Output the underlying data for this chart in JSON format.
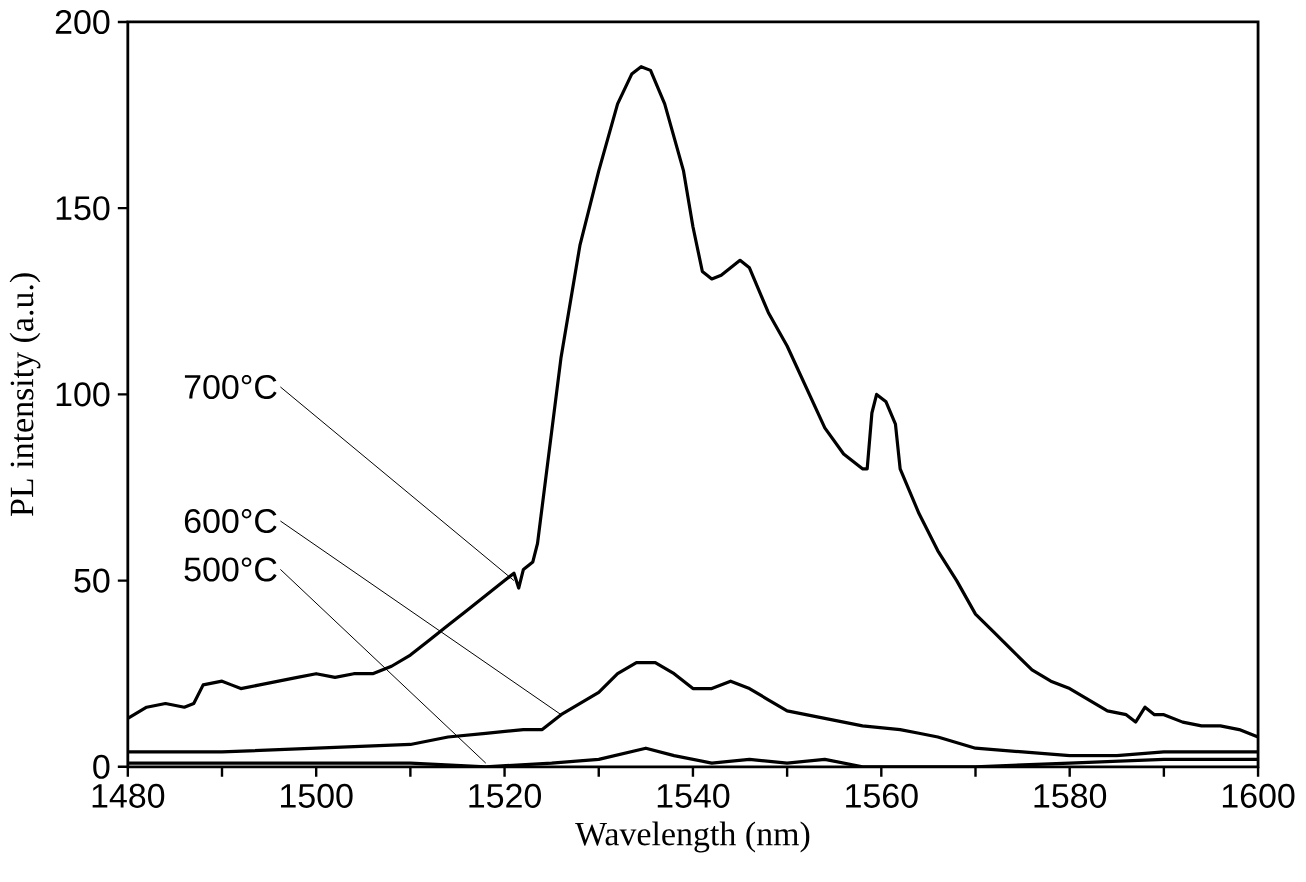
{
  "chart_data": {
    "type": "line",
    "xlabel": "Wavelength (nm)",
    "ylabel": "PL intensity (a.u.)",
    "xlim": [
      1480,
      1600
    ],
    "ylim": [
      0,
      200
    ],
    "xticks": [
      1480,
      {
        "value": 1490,
        "label": null
      },
      1500,
      {
        "value": 1510,
        "label": null
      },
      1520,
      {
        "value": 1530,
        "label": null
      },
      1540,
      {
        "value": 1550,
        "label": null
      },
      1560,
      {
        "value": 1570,
        "label": null
      },
      1580,
      {
        "value": 1590,
        "label": null
      },
      1600
    ],
    "yticks": [
      0,
      50,
      100,
      150,
      200
    ],
    "marker": "none",
    "line_style": "solid",
    "series": [
      {
        "color": "#000000",
        "x": [
          1480,
          1482,
          1484,
          1486,
          1487,
          1488,
          1490,
          1491,
          1492,
          1494,
          1496,
          1498,
          1500,
          1502,
          1504,
          1506,
          1508,
          1510,
          1512,
          1514,
          1516,
          1518,
          1520,
          1521,
          1521.5,
          1522,
          1523,
          1523.5,
          1524,
          1525,
          1526,
          1527,
          1528,
          1530,
          1532,
          1533.5,
          1534.5,
          1535.5,
          1537,
          1539,
          1540,
          1541,
          1542,
          1543,
          1545,
          1546,
          1548,
          1550,
          1552,
          1554,
          1556,
          1558,
          1558.5,
          1559,
          1559.5,
          1560.5,
          1561.5,
          1562,
          1564,
          1566,
          1568,
          1570,
          1572,
          1574,
          1576,
          1578,
          1580,
          1582,
          1584,
          1586,
          1587,
          1588,
          1589,
          1590,
          1592,
          1594,
          1596,
          1598,
          1600
        ],
        "values": [
          13,
          16,
          17,
          16,
          17,
          22,
          23,
          22,
          21,
          22,
          23,
          24,
          25,
          24,
          25,
          25,
          27,
          30,
          34,
          38,
          42,
          46,
          50,
          52,
          48,
          53,
          55,
          60,
          70,
          90,
          110,
          125,
          140,
          160,
          178,
          186,
          188,
          187,
          178,
          160,
          145,
          133,
          131,
          132,
          136,
          134,
          122,
          113,
          102,
          91,
          84,
          80,
          80,
          95,
          100,
          98,
          92,
          80,
          68,
          58,
          50,
          41,
          36,
          31,
          26,
          23,
          21,
          18,
          15,
          14,
          12,
          16,
          14,
          14,
          12,
          11,
          11,
          10,
          8
        ]
      },
      {
        "color": "#000000",
        "x": [
          1480,
          1490,
          1500,
          1510,
          1514,
          1518,
          1522,
          1524,
          1526,
          1528,
          1530,
          1532,
          1534,
          1536,
          1538,
          1540,
          1542,
          1544,
          1546,
          1548,
          1550,
          1554,
          1558,
          1562,
          1564,
          1566,
          1570,
          1575,
          1580,
          1585,
          1590,
          1595,
          1600
        ],
        "values": [
          4,
          4,
          5,
          6,
          8,
          9,
          10,
          10,
          14,
          17,
          20,
          25,
          28,
          28,
          25,
          21,
          21,
          23,
          21,
          18,
          15,
          13,
          11,
          10,
          9,
          8,
          5,
          4,
          3,
          3,
          4,
          4,
          4
        ]
      },
      {
        "color": "#000000",
        "x": [
          1480,
          1490,
          1500,
          1510,
          1518,
          1525,
          1530,
          1535,
          1538,
          1542,
          1546,
          1550,
          1554,
          1558,
          1570,
          1580,
          1590,
          1600
        ],
        "values": [
          1,
          1,
          1,
          1,
          0,
          1,
          2,
          5,
          3,
          1,
          2,
          1,
          2,
          0,
          0,
          1,
          2,
          2
        ]
      }
    ],
    "annotations": [
      {
        "text": "700°C",
        "x": 1521,
        "y": 50
      },
      {
        "text": "600°C",
        "x": 1526,
        "y": 14
      },
      {
        "text": "500°C",
        "x": 1518,
        "y": 1
      }
    ]
  }
}
